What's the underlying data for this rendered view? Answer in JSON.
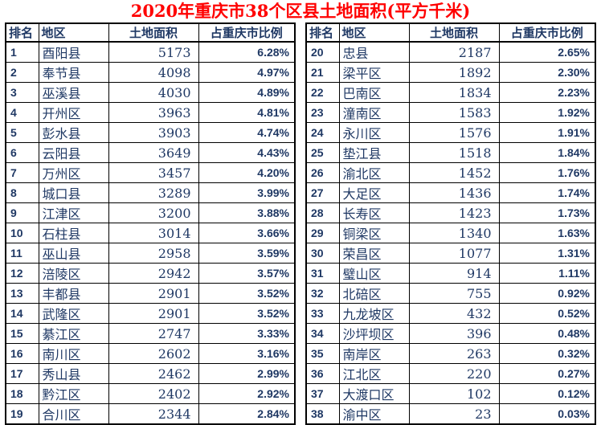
{
  "colors": {
    "title": "#FF0000",
    "table_text": "#1F3864",
    "border": "#000000",
    "background": "#FFFFFF"
  },
  "chart_data": {
    "type": "table",
    "title": "2020年重庆市38个区县土地面积(平方千米)",
    "columns": [
      "排名",
      "地区",
      "土地面积",
      "占重庆市比例"
    ],
    "layout": "two side-by-side tables, ranks 1-19 left and 20-38 right",
    "tables": [
      {
        "rows": [
          [
            "1",
            "酉阳县",
            "5173",
            "6.28%"
          ],
          [
            "2",
            "奉节县",
            "4098",
            "4.97%"
          ],
          [
            "3",
            "巫溪县",
            "4030",
            "4.89%"
          ],
          [
            "4",
            "开州区",
            "3963",
            "4.81%"
          ],
          [
            "5",
            "彭水县",
            "3903",
            "4.74%"
          ],
          [
            "6",
            "云阳县",
            "3649",
            "4.43%"
          ],
          [
            "7",
            "万州区",
            "3457",
            "4.20%"
          ],
          [
            "8",
            "城口县",
            "3289",
            "3.99%"
          ],
          [
            "9",
            "江津区",
            "3200",
            "3.88%"
          ],
          [
            "10",
            "石柱县",
            "3014",
            "3.66%"
          ],
          [
            "11",
            "巫山县",
            "2958",
            "3.59%"
          ],
          [
            "12",
            "涪陵区",
            "2942",
            "3.57%"
          ],
          [
            "13",
            "丰都县",
            "2901",
            "3.52%"
          ],
          [
            "14",
            "武隆区",
            "2901",
            "3.52%"
          ],
          [
            "15",
            "綦江区",
            "2747",
            "3.33%"
          ],
          [
            "16",
            "南川区",
            "2602",
            "3.16%"
          ],
          [
            "17",
            "秀山县",
            "2462",
            "2.99%"
          ],
          [
            "18",
            "黔江区",
            "2402",
            "2.92%"
          ],
          [
            "19",
            "合川区",
            "2344",
            "2.84%"
          ]
        ]
      },
      {
        "rows": [
          [
            "20",
            "忠县",
            "2187",
            "2.65%"
          ],
          [
            "21",
            "梁平区",
            "1892",
            "2.30%"
          ],
          [
            "22",
            "巴南区",
            "1834",
            "2.23%"
          ],
          [
            "23",
            "潼南区",
            "1583",
            "1.92%"
          ],
          [
            "24",
            "永川区",
            "1576",
            "1.91%"
          ],
          [
            "25",
            "垫江县",
            "1518",
            "1.84%"
          ],
          [
            "26",
            "渝北区",
            "1452",
            "1.76%"
          ],
          [
            "27",
            "大足区",
            "1436",
            "1.74%"
          ],
          [
            "28",
            "长寿区",
            "1423",
            "1.73%"
          ],
          [
            "29",
            "铜梁区",
            "1340",
            "1.63%"
          ],
          [
            "30",
            "荣昌区",
            "1077",
            "1.31%"
          ],
          [
            "31",
            "璧山区",
            "914",
            "1.11%"
          ],
          [
            "32",
            "北碚区",
            "755",
            "0.92%"
          ],
          [
            "33",
            "九龙坡区",
            "432",
            "0.52%"
          ],
          [
            "34",
            "沙坪坝区",
            "396",
            "0.48%"
          ],
          [
            "35",
            "南岸区",
            "263",
            "0.32%"
          ],
          [
            "36",
            "江北区",
            "220",
            "0.27%"
          ],
          [
            "37",
            "大渡口区",
            "102",
            "0.12%"
          ],
          [
            "38",
            "渝中区",
            "23",
            "0.03%"
          ]
        ]
      }
    ]
  }
}
